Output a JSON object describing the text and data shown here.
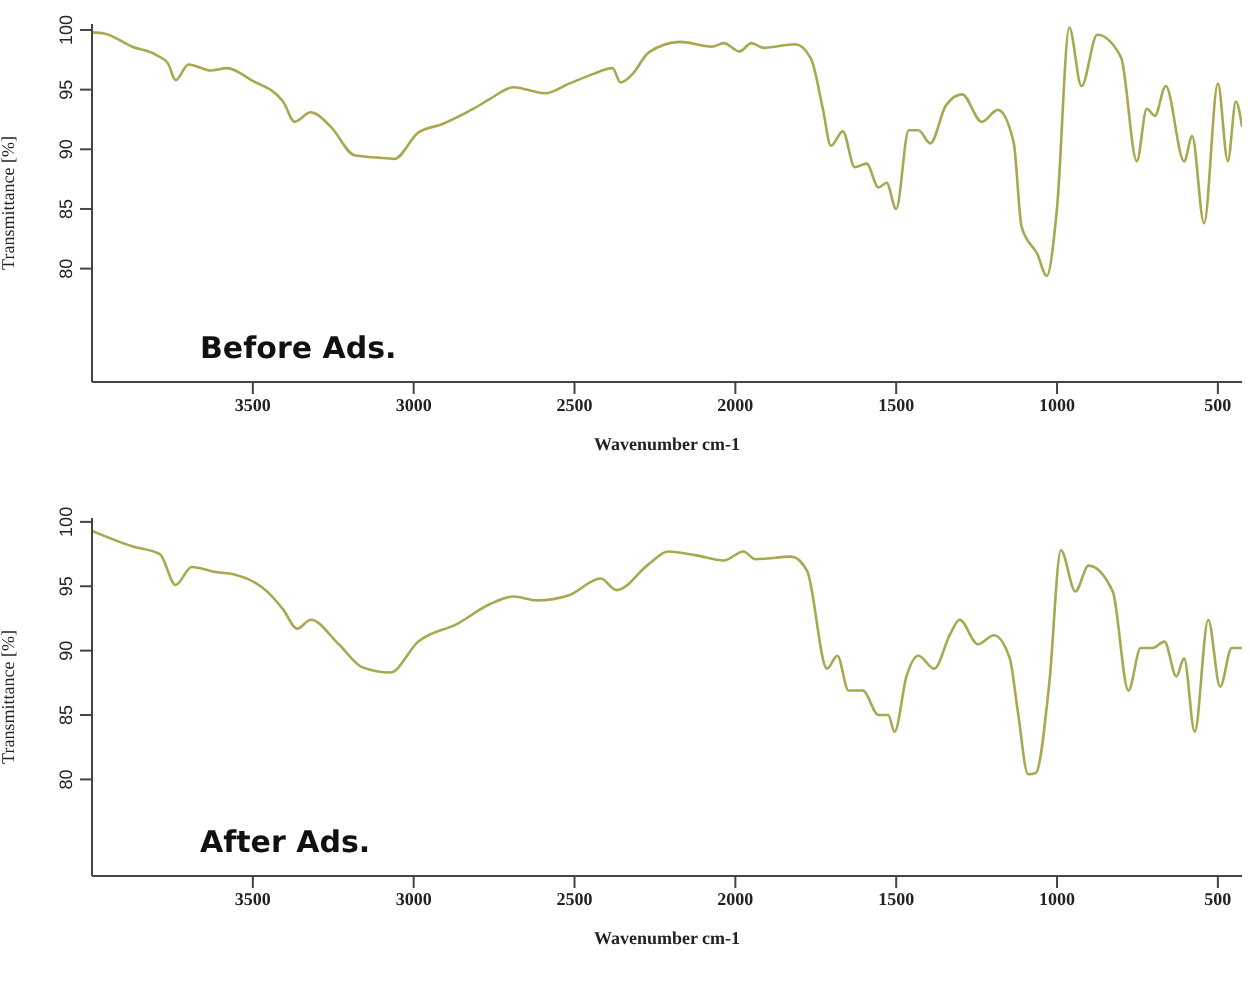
{
  "chart_data": [
    {
      "type": "line",
      "xlabel": "Wavenumber cm-1",
      "ylabel": "Transmittance [%]",
      "annotations": [
        "Before Ads."
      ],
      "marker": "none",
      "line_style": "solid",
      "xlim": [
        4000,
        425
      ],
      "xticks": [
        3500,
        3000,
        2500,
        2000,
        1500,
        1000,
        500
      ],
      "ylim": [
        70.5,
        100.5
      ],
      "yticks": [
        80,
        85,
        90,
        95,
        100
      ],
      "series": [
        {
          "color": "#a8a850",
          "x": [
            4000,
            3962,
            3875,
            3800,
            3764,
            3740,
            3700,
            3630,
            3580,
            3505,
            3406,
            3370,
            3320,
            3258,
            3184,
            3110,
            3060,
            2986,
            2912,
            2814,
            2764,
            2690,
            2591,
            2517,
            2443,
            2382,
            2357,
            2320,
            2270,
            2172,
            2073,
            2036,
            1987,
            1950,
            1913,
            1814,
            1765,
            1728,
            1703,
            1666,
            1629,
            1592,
            1555,
            1530,
            1500,
            1461,
            1431,
            1394,
            1345,
            1295,
            1234,
            1184,
            1135,
            1110,
            1061,
            1032,
            1000,
            962,
            924,
            875,
            801,
            752,
            721,
            696,
            662,
            605,
            580,
            543,
            500,
            469,
            444,
            425
          ],
          "values": [
            99.8,
            99.7,
            98.6,
            97.9,
            97.2,
            95.8,
            97.1,
            96.6,
            96.8,
            95.8,
            94,
            92.3,
            93.1,
            91.9,
            89.5,
            89.3,
            89.2,
            91.4,
            92.1,
            93.4,
            94.2,
            95.2,
            94.7,
            95.5,
            96.3,
            96.8,
            95.6,
            96.3,
            98.1,
            99,
            98.6,
            98.9,
            98.2,
            98.9,
            98.5,
            98.8,
            97.6,
            93.4,
            90.3,
            91.5,
            88.5,
            88.8,
            86.8,
            87.2,
            85,
            91.6,
            91.6,
            90.5,
            93.7,
            94.6,
            92.3,
            93.3,
            90.6,
            83.5,
            81.2,
            79.4,
            85.1,
            100.2,
            95.3,
            99.6,
            97.7,
            89,
            93.4,
            92.8,
            95.3,
            89,
            91.1,
            83.8,
            95.5,
            89,
            94,
            91.9
          ]
        }
      ]
    },
    {
      "type": "line",
      "xlabel": "Wavenumber cm-1",
      "ylabel": "Transmittance [%]",
      "annotations": [
        "After Ads."
      ],
      "marker": "none",
      "line_style": "solid",
      "xlim": [
        4000,
        425
      ],
      "xticks": [
        3500,
        3000,
        2500,
        2000,
        1500,
        1000,
        500
      ],
      "ylim": [
        72.5,
        100.3
      ],
      "yticks": [
        80,
        85,
        90,
        95,
        100
      ],
      "series": [
        {
          "color": "#a8a850",
          "x": [
            4000,
            3875,
            3789,
            3740,
            3690,
            3616,
            3554,
            3456,
            3406,
            3362,
            3320,
            3233,
            3159,
            3073,
            2986,
            2863,
            2764,
            2690,
            2616,
            2517,
            2419,
            2369,
            2270,
            2209,
            2122,
            2036,
            1975,
            1938,
            1826,
            1777,
            1715,
            1683,
            1648,
            1604,
            1555,
            1525,
            1505,
            1468,
            1431,
            1382,
            1332,
            1303,
            1246,
            1196,
            1147,
            1122,
            1090,
            1066,
            1024,
            988,
            943,
            902,
            827,
            778,
            740,
            703,
            666,
            629,
            605,
            572,
            530,
            493,
            457,
            425
          ],
          "values": [
            99.3,
            98.1,
            97.5,
            95.1,
            96.5,
            96.1,
            95.9,
            94.6,
            93.2,
            91.7,
            92.4,
            90.5,
            88.7,
            88.3,
            90.7,
            92.1,
            93.6,
            94.2,
            93.9,
            94.3,
            95.6,
            94.7,
            96.7,
            97.7,
            97.4,
            97,
            97.7,
            97.1,
            97.3,
            96.2,
            88.6,
            89.6,
            86.9,
            86.9,
            85,
            85,
            83.7,
            88,
            89.6,
            88.6,
            91.3,
            92.4,
            90.5,
            91.2,
            89.4,
            85.3,
            80.4,
            80.5,
            87.5,
            97.8,
            94.6,
            96.6,
            94.6,
            86.9,
            90.2,
            90.2,
            90.7,
            88,
            89.4,
            83.7,
            92.4,
            87.2,
            90.2,
            90.2
          ]
        }
      ]
    }
  ]
}
